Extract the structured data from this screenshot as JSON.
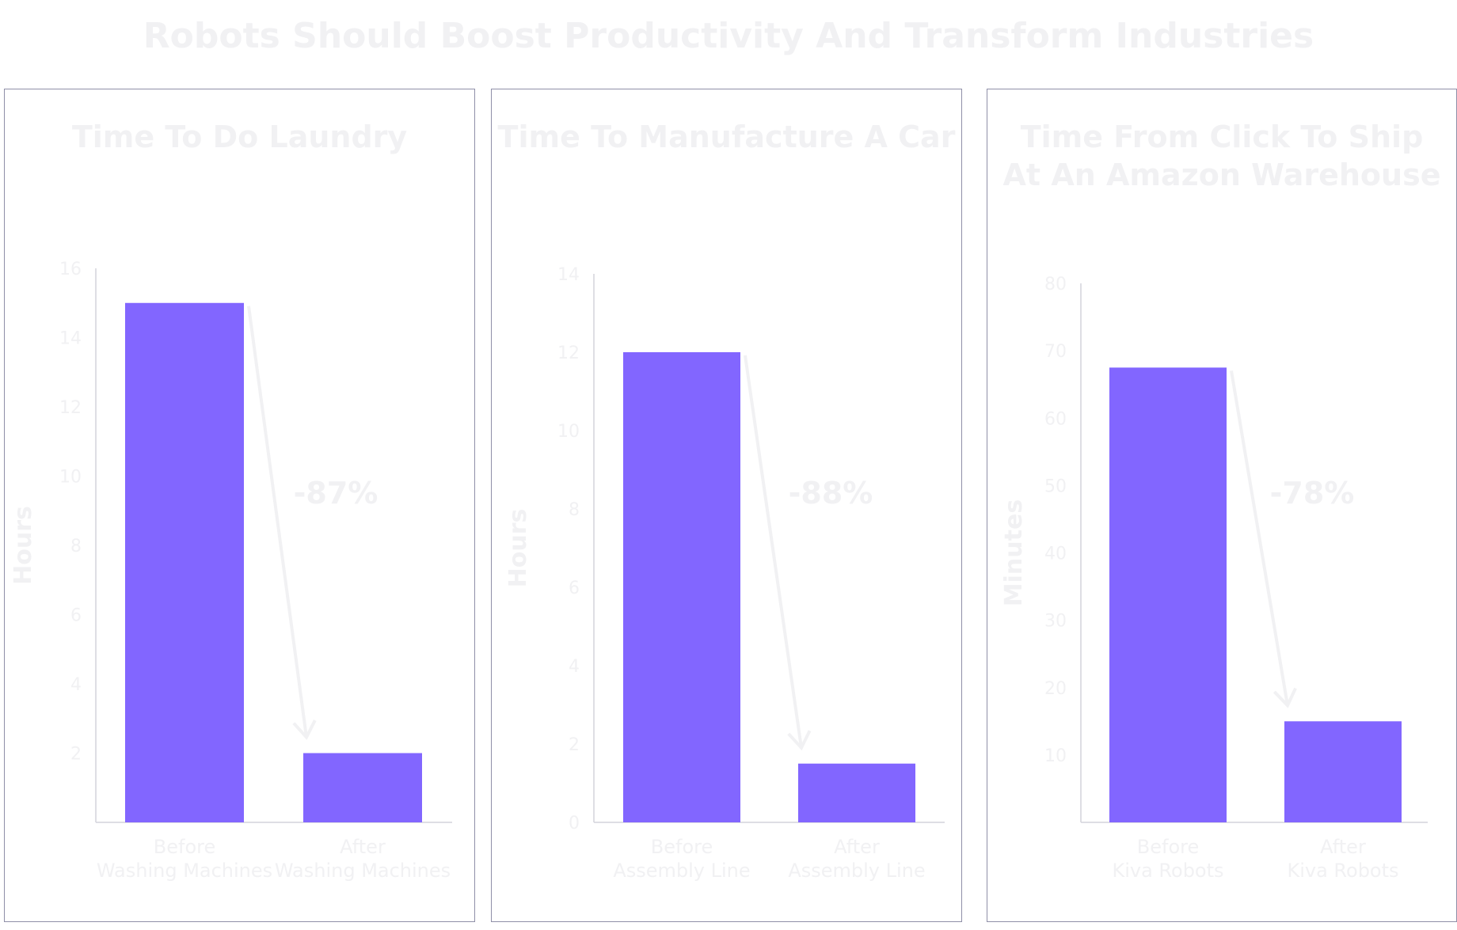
{
  "title": "Robots Should Boost Productivity And Transform Industries",
  "colors": {
    "bar": "#8266ff",
    "text": "#f1f1f3",
    "axis": "#d4d4dc",
    "arrow": "#f1f1f3",
    "border": "#8f8fa8"
  },
  "chart_data": [
    {
      "type": "bar",
      "title": [
        "Time To Do Laundry"
      ],
      "ylabel": "Hours",
      "categories": [
        [
          "Before",
          "Washing Machines"
        ],
        [
          "After",
          "Washing Machines"
        ]
      ],
      "values": [
        15,
        2
      ],
      "ylim": [
        0,
        16
      ],
      "yticks": [
        2,
        4,
        6,
        8,
        10,
        12,
        14,
        16
      ],
      "change_label": "-87%",
      "grid": false
    },
    {
      "type": "bar",
      "title": [
        "Time To Manufacture A Car"
      ],
      "ylabel": "Hours",
      "categories": [
        [
          "Before",
          "Assembly Line"
        ],
        [
          "After",
          "Assembly Line"
        ]
      ],
      "values": [
        12,
        1.5
      ],
      "ylim": [
        0,
        14
      ],
      "yticks": [
        0,
        2,
        4,
        6,
        8,
        10,
        12,
        14
      ],
      "change_label": "-88%",
      "grid": false
    },
    {
      "type": "bar",
      "title": [
        "Time From Click To Ship",
        "At An Amazon Warehouse"
      ],
      "ylabel": "Minutes",
      "categories": [
        [
          "Before",
          "Kiva Robots"
        ],
        [
          "After",
          "Kiva Robots"
        ]
      ],
      "values": [
        67.5,
        15
      ],
      "ylim": [
        0,
        80
      ],
      "yticks": [
        10,
        20,
        30,
        40,
        50,
        60,
        70,
        80
      ],
      "change_label": "-78%",
      "grid": false
    }
  ]
}
